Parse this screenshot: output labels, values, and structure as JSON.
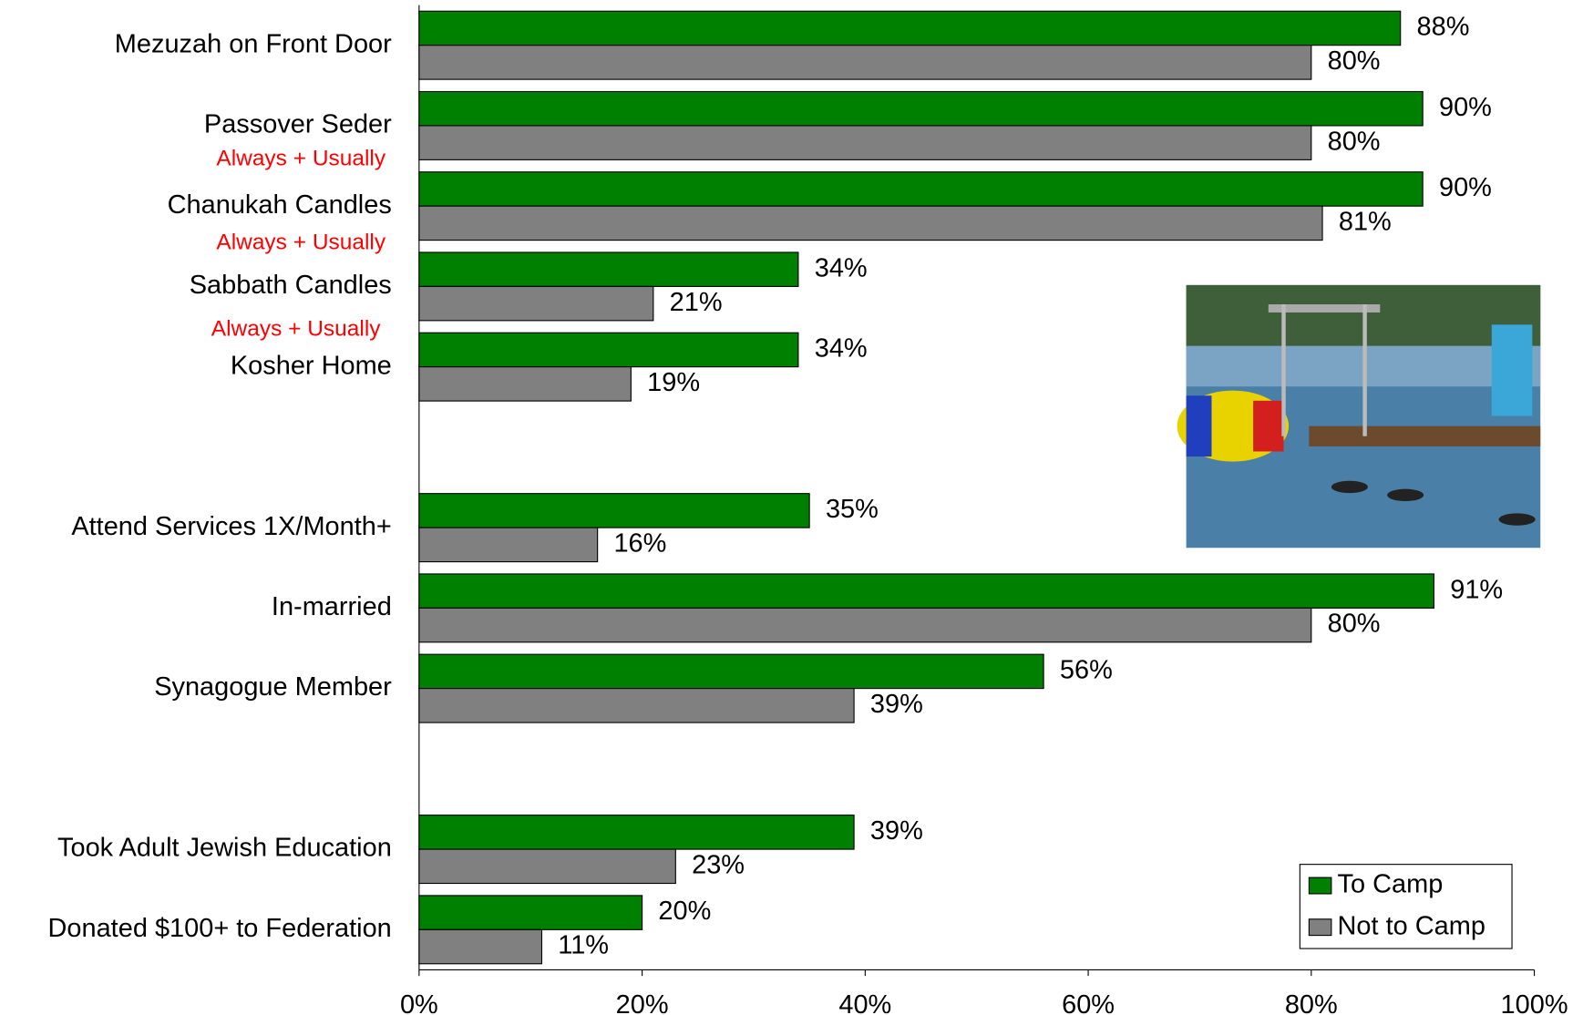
{
  "chart_data": {
    "type": "hbar",
    "categories": [
      "Mezuzah on Front Door",
      "Passover Seder",
      "Chanukah Candles",
      "Sabbath Candles",
      "Kosher Home",
      null,
      "Attend Services 1X/Month+",
      "In-married",
      "Synagogue Member",
      null,
      "Took Adult Jewish Education",
      "Donated $100+ to Federation"
    ],
    "series": [
      {
        "name": "To Camp",
        "color": "#008000",
        "values": [
          88,
          90,
          90,
          34,
          34,
          null,
          35,
          91,
          56,
          null,
          39,
          20
        ],
        "value_labels": [
          "88%",
          "90%",
          "90%",
          "34%",
          "34%",
          null,
          "35%",
          "91%",
          "56%",
          null,
          "39%",
          "20%"
        ]
      },
      {
        "name": "Not to Camp",
        "color": "#808080",
        "values": [
          80,
          80,
          81,
          21,
          19,
          null,
          16,
          80,
          39,
          null,
          23,
          11
        ],
        "value_labels": [
          "80%",
          "80%",
          "81%",
          "21%",
          "19%",
          null,
          "16%",
          "80%",
          "39%",
          null,
          "23%",
          "11%"
        ]
      }
    ],
    "xlim": [
      0,
      100
    ],
    "xticks": [
      {
        "value": 0,
        "label": "0%"
      },
      {
        "value": 20,
        "label": "20%"
      },
      {
        "value": 40,
        "label": "40%"
      },
      {
        "value": 60,
        "label": "60%"
      },
      {
        "value": 80,
        "label": "80%"
      },
      {
        "value": 100,
        "label": "100%"
      }
    ],
    "annotations": [
      "Always + Usually",
      "Always + Usually",
      "Always + Usually"
    ],
    "legend": "bottom-right"
  }
}
